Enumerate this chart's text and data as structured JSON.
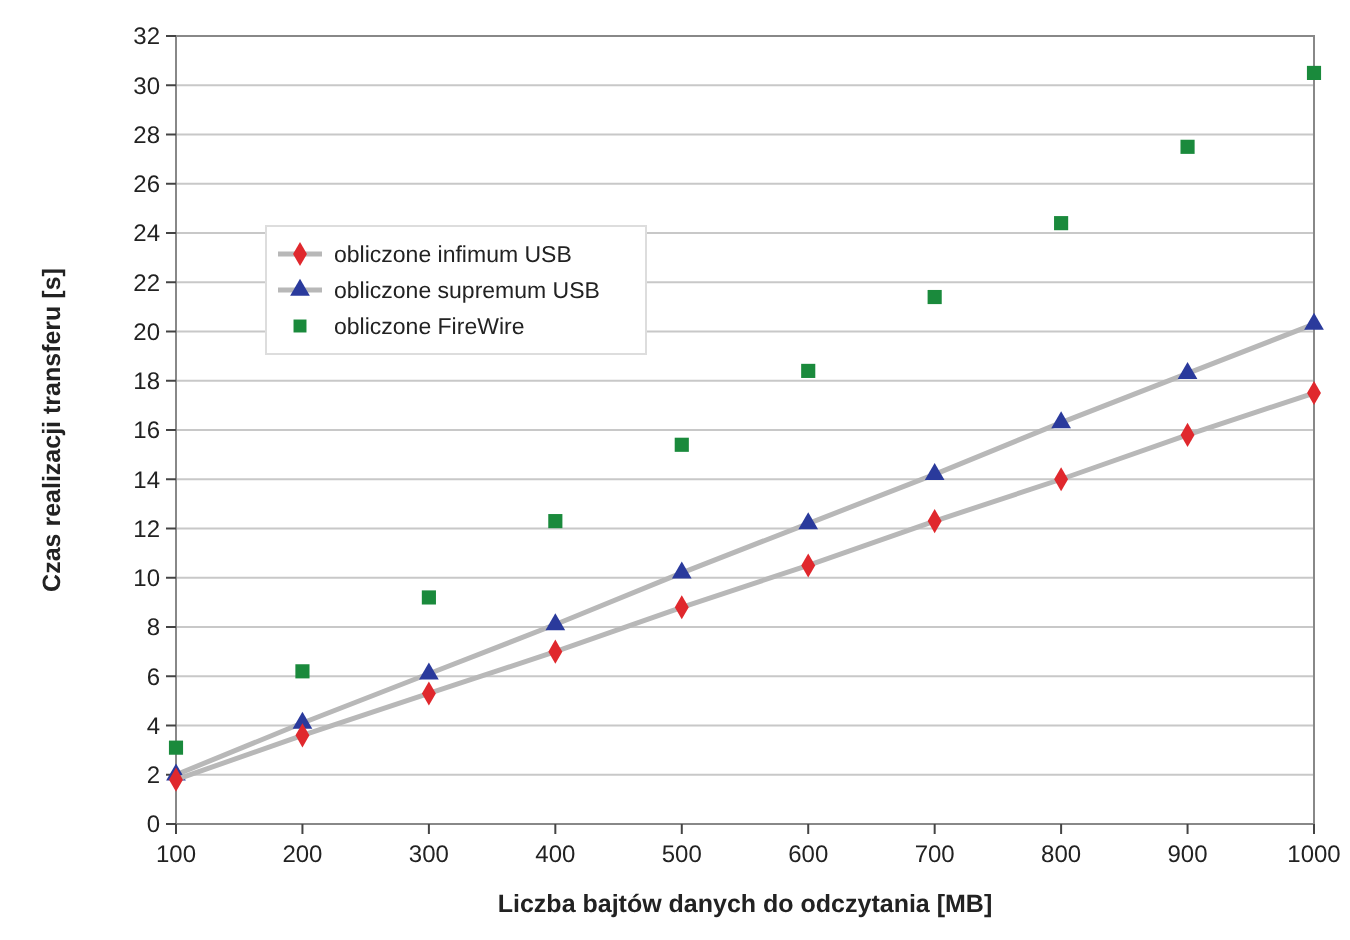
{
  "chart_data": {
    "type": "line",
    "xlabel": "Liczba bajtów danych do odczytania [MB]",
    "ylabel": "Czas realizacji transferu [s]",
    "x": [
      100,
      200,
      300,
      400,
      500,
      600,
      700,
      800,
      900,
      1000
    ],
    "series": [
      {
        "name": "obliczone infimum USB",
        "color": "#e0282d",
        "marker": "diamond",
        "values": [
          1.8,
          3.6,
          5.3,
          7.0,
          8.8,
          10.5,
          12.3,
          14.0,
          15.8,
          17.5
        ]
      },
      {
        "name": "obliczone supremum USB",
        "color": "#2a3a9c",
        "marker": "triangle",
        "values": [
          2.0,
          4.1,
          6.1,
          8.1,
          10.2,
          12.2,
          14.2,
          16.3,
          18.3,
          20.3
        ]
      },
      {
        "name": "obliczone FireWire",
        "color": "#1a8a3c",
        "type": "scatter",
        "marker": "square",
        "values": [
          3.1,
          6.2,
          9.2,
          12.3,
          15.4,
          18.4,
          21.4,
          24.4,
          27.5,
          30.5
        ]
      }
    ],
    "xlim": [
      100,
      1000
    ],
    "xticks": [
      100,
      200,
      300,
      400,
      500,
      600,
      700,
      800,
      900,
      1000
    ],
    "ylim": [
      0,
      32
    ],
    "yticks": [
      0,
      2,
      4,
      6,
      8,
      10,
      12,
      14,
      16,
      18,
      20,
      22,
      24,
      26,
      28,
      30,
      32
    ],
    "grid": "y",
    "legend": "top left"
  }
}
